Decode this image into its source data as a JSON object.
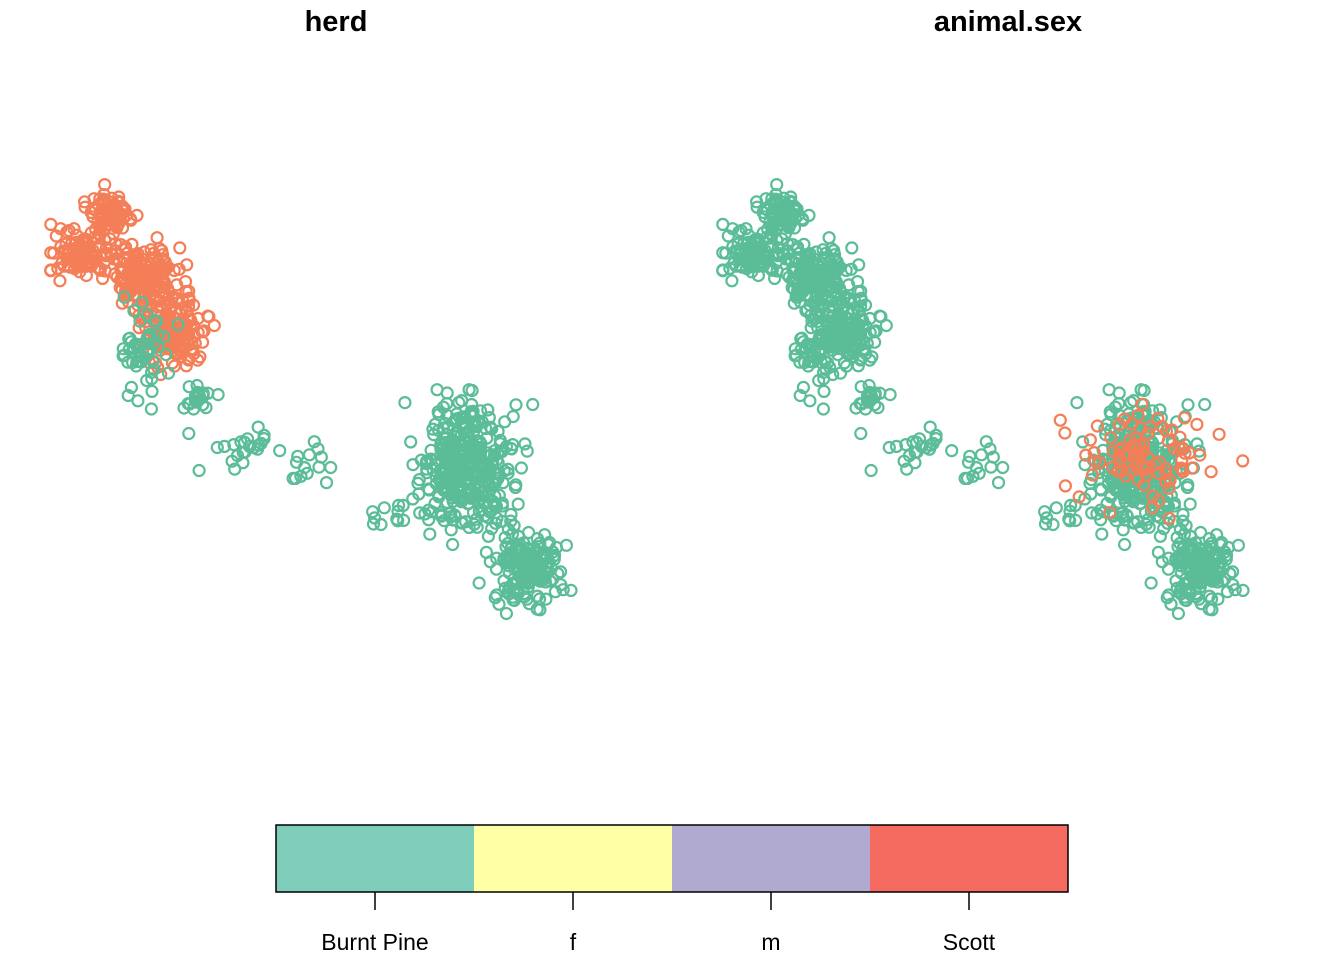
{
  "chart_data": [
    {
      "type": "scatter",
      "title": "herd",
      "colors": {
        "Burnt Pine": "#5bbd97",
        "Scott": "#f47e57"
      },
      "clusters": [
        {
          "class": "Scott",
          "cx": 0.11,
          "cy": 0.93,
          "sx": 0.018,
          "sy": 0.02,
          "n": 80
        },
        {
          "class": "Scott",
          "cx": 0.06,
          "cy": 0.84,
          "sx": 0.03,
          "sy": 0.025,
          "n": 110
        },
        {
          "class": "Scott",
          "cx": 0.17,
          "cy": 0.79,
          "sx": 0.03,
          "sy": 0.035,
          "n": 170
        },
        {
          "class": "Scott",
          "cx": 0.22,
          "cy": 0.68,
          "sx": 0.03,
          "sy": 0.035,
          "n": 150
        },
        {
          "class": "Burnt Pine",
          "cx": 0.17,
          "cy": 0.63,
          "sx": 0.025,
          "sy": 0.04,
          "n": 50
        },
        {
          "class": "Burnt Pine",
          "cx": 0.26,
          "cy": 0.54,
          "sx": 0.015,
          "sy": 0.015,
          "n": 20
        },
        {
          "class": "Burnt Pine",
          "cx": 0.35,
          "cy": 0.43,
          "sx": 0.03,
          "sy": 0.025,
          "n": 22
        },
        {
          "class": "Burnt Pine",
          "cx": 0.45,
          "cy": 0.38,
          "sx": 0.025,
          "sy": 0.025,
          "n": 15
        },
        {
          "class": "Burnt Pine",
          "cx": 0.74,
          "cy": 0.39,
          "sx": 0.04,
          "sy": 0.065,
          "n": 380
        },
        {
          "class": "Burnt Pine",
          "cx": 0.85,
          "cy": 0.18,
          "sx": 0.035,
          "sy": 0.04,
          "n": 160
        },
        {
          "class": "Burnt Pine",
          "cx": 0.61,
          "cy": 0.29,
          "sx": 0.02,
          "sy": 0.02,
          "n": 12
        }
      ]
    },
    {
      "type": "scatter",
      "title": "animal.sex",
      "colors": {
        "f": "#5bbd97",
        "m": "#f47e57"
      },
      "clusters": [
        {
          "class": "f",
          "cx": 0.11,
          "cy": 0.93,
          "sx": 0.018,
          "sy": 0.02,
          "n": 80
        },
        {
          "class": "f",
          "cx": 0.06,
          "cy": 0.84,
          "sx": 0.03,
          "sy": 0.025,
          "n": 110
        },
        {
          "class": "f",
          "cx": 0.17,
          "cy": 0.79,
          "sx": 0.03,
          "sy": 0.035,
          "n": 170
        },
        {
          "class": "f",
          "cx": 0.22,
          "cy": 0.68,
          "sx": 0.03,
          "sy": 0.035,
          "n": 150
        },
        {
          "class": "f",
          "cx": 0.17,
          "cy": 0.63,
          "sx": 0.025,
          "sy": 0.04,
          "n": 50
        },
        {
          "class": "f",
          "cx": 0.26,
          "cy": 0.54,
          "sx": 0.015,
          "sy": 0.015,
          "n": 20
        },
        {
          "class": "f",
          "cx": 0.35,
          "cy": 0.43,
          "sx": 0.03,
          "sy": 0.025,
          "n": 22
        },
        {
          "class": "f",
          "cx": 0.45,
          "cy": 0.38,
          "sx": 0.025,
          "sy": 0.025,
          "n": 15
        },
        {
          "class": "f",
          "cx": 0.74,
          "cy": 0.39,
          "sx": 0.04,
          "sy": 0.065,
          "n": 380
        },
        {
          "class": "f",
          "cx": 0.85,
          "cy": 0.18,
          "sx": 0.035,
          "sy": 0.04,
          "n": 160
        },
        {
          "class": "f",
          "cx": 0.61,
          "cy": 0.29,
          "sx": 0.02,
          "sy": 0.02,
          "n": 12
        },
        {
          "class": "m",
          "cx": 0.74,
          "cy": 0.42,
          "sx": 0.06,
          "sy": 0.05,
          "n": 90
        }
      ]
    }
  ],
  "legend": {
    "entries": [
      {
        "label": "Burnt Pine",
        "color": "#7fcdbb"
      },
      {
        "label": "f",
        "color": "#ffffa6"
      },
      {
        "label": "m",
        "color": "#b0aad0"
      },
      {
        "label": "Scott",
        "color": "#f56b60"
      }
    ]
  }
}
